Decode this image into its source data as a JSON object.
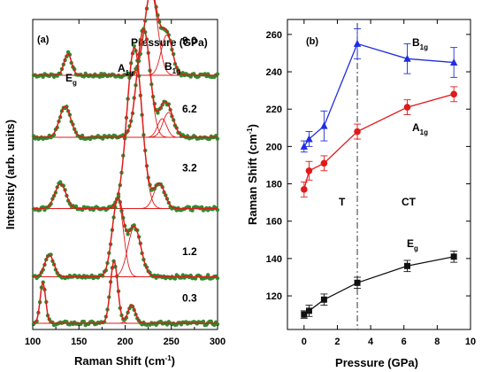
{
  "chart_data": [
    {
      "panel_label": "(a)",
      "type": "line",
      "xlabel": "Raman Shift (cm",
      "xlabel_sup": "-1",
      "xlabel_close": ")",
      "ylabel": "Intensity (arb. units)",
      "xlim": [
        100,
        300
      ],
      "x_ticks": [
        "100",
        "150",
        "200",
        "250",
        "300"
      ],
      "legend_title": "Pressure (GPa)",
      "peak_labels": [
        {
          "base": "E",
          "sub": "g",
          "x": 137
        },
        {
          "base": "A",
          "sub": "1g",
          "x": 222
        },
        {
          "base": "B",
          "sub": "1g",
          "x": 247
        }
      ],
      "series": [
        {
          "name": "9.0",
          "offset": 0.82,
          "peaks": [
            {
              "center": 138,
              "height": 0.07,
              "width": 4
            },
            {
              "center": 228,
              "height": 0.27,
              "width": 7
            },
            {
              "center": 245,
              "height": 0.13,
              "width": 6
            }
          ]
        },
        {
          "name": "6.2",
          "offset": 0.62,
          "peaks": [
            {
              "center": 135,
              "height": 0.1,
              "width": 6
            },
            {
              "center": 220,
              "height": 0.35,
              "width": 7
            },
            {
              "center": 240,
              "height": 0.06,
              "width": 5
            },
            {
              "center": 247,
              "height": 0.08,
              "width": 6
            }
          ]
        },
        {
          "name": "3.2",
          "offset": 0.39,
          "peaks": [
            {
              "center": 130,
              "height": 0.08,
              "width": 6
            },
            {
              "center": 210,
              "height": 0.52,
              "width": 8
            },
            {
              "center": 237,
              "height": 0.08,
              "width": 6
            }
          ]
        },
        {
          "name": "1.2",
          "offset": 0.17,
          "peaks": [
            {
              "center": 118,
              "height": 0.07,
              "width": 5
            },
            {
              "center": 192,
              "height": 0.25,
              "width": 6
            },
            {
              "center": 210,
              "height": 0.16,
              "width": 7
            }
          ]
        },
        {
          "name": "0.3",
          "offset": 0.02,
          "peaks": [
            {
              "center": 111,
              "height": 0.13,
              "width": 3
            },
            {
              "center": 188,
              "height": 0.2,
              "width": 4
            },
            {
              "center": 207,
              "height": 0.06,
              "width": 4
            }
          ]
        }
      ]
    },
    {
      "panel_label": "(b)",
      "type": "scatter",
      "xlabel": "Pressure (GPa)",
      "ylabel": "Raman Shift (cm",
      "ylabel_sup": "-1",
      "ylabel_close": ")",
      "xlim": [
        -1,
        10
      ],
      "ylim": [
        102,
        268
      ],
      "x_ticks": [
        0,
        2,
        4,
        6,
        8,
        10
      ],
      "y_ticks": [
        120,
        140,
        160,
        180,
        200,
        220,
        240,
        260
      ],
      "phase_boundary_x": 3.2,
      "phase_labels": [
        "T",
        "CT"
      ],
      "series": [
        {
          "name": "B",
          "sub": "1g",
          "color": "#1f2ee0",
          "marker": "triangle",
          "x": [
            0,
            0.3,
            1.2,
            3.2,
            6.2,
            9.0
          ],
          "y": [
            200,
            204,
            211,
            255,
            247,
            245
          ],
          "err": [
            3,
            4,
            8,
            8,
            8,
            8
          ]
        },
        {
          "name": "A",
          "sub": "1g",
          "color": "#e01a1a",
          "marker": "circle",
          "x": [
            0,
            0.3,
            1.2,
            3.2,
            6.2,
            9.0
          ],
          "y": [
            177,
            187,
            191,
            208,
            221,
            228
          ],
          "err": [
            4,
            5,
            4,
            4,
            4,
            4
          ]
        },
        {
          "name": "E",
          "sub": "g",
          "color": "#111111",
          "marker": "square",
          "x": [
            0,
            0.3,
            1.2,
            3.2,
            6.2,
            9.0
          ],
          "y": [
            110,
            112,
            118,
            127,
            136,
            141
          ],
          "err": [
            2,
            3,
            3,
            3,
            3,
            3
          ]
        }
      ]
    }
  ]
}
